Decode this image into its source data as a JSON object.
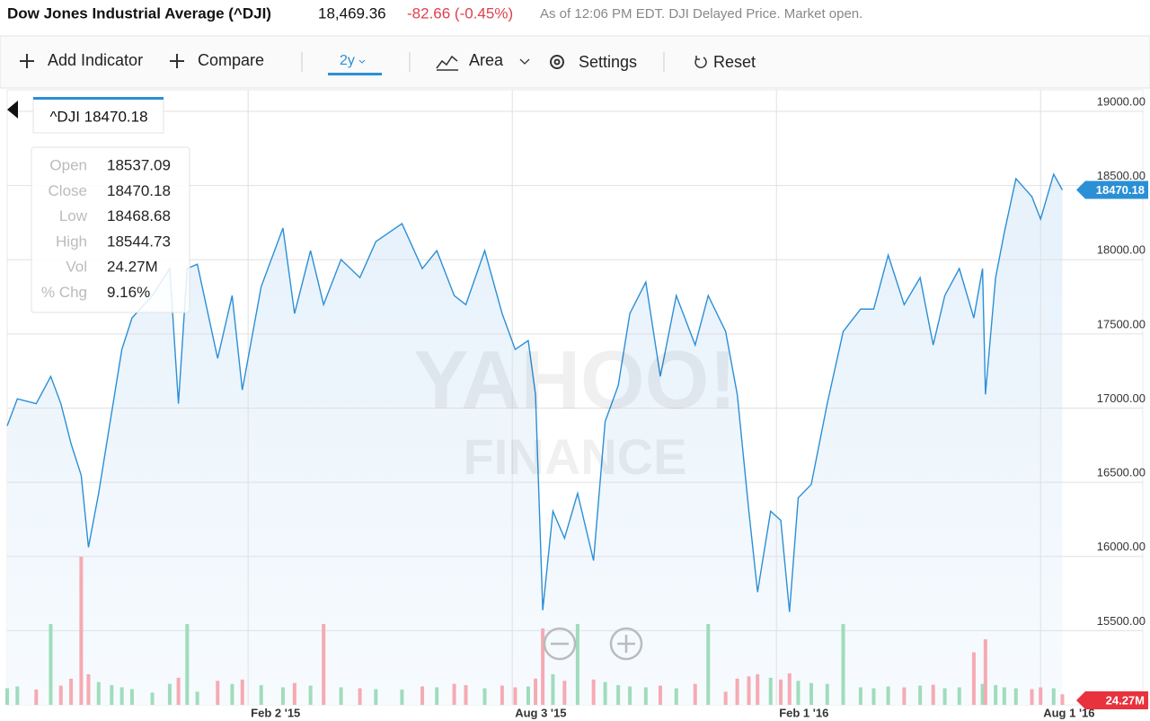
{
  "header": {
    "title": "Dow Jones Industrial Average (^DJI)",
    "price": "18,469.36",
    "change": "-82.66 (-0.45%)",
    "note": "As of 12:06 PM EDT. DJI Delayed Price. Market open."
  },
  "toolbar": [
    "Add Indicator",
    "Compare",
    "2y",
    "Area",
    "Settings",
    "Reset"
  ],
  "watermark": [
    "YAHOO!",
    "FINANCE"
  ],
  "legend_label": "^DJI 18470.18",
  "tooltip": {
    "rows": [
      [
        "Open",
        "18537.09"
      ],
      [
        "Close",
        "18470.18"
      ],
      [
        "Low",
        "18468.68"
      ],
      [
        "High",
        "18544.73"
      ],
      [
        "Vol",
        "24.27M"
      ],
      [
        "% Chg",
        "9.16%"
      ]
    ]
  },
  "chart_data": {
    "type": "area",
    "x": [
      "2014-08-20",
      "2014-08-27",
      "2014-09-09",
      "2014-09-19",
      "2014-09-26",
      "2014-10-03",
      "2014-10-10",
      "2014-10-15",
      "2014-10-22",
      "2014-10-31",
      "2014-11-07",
      "2014-11-14",
      "2014-11-28",
      "2014-12-10",
      "2014-12-16",
      "2014-12-22",
      "2014-12-29",
      "2015-01-12",
      "2015-01-22",
      "2015-01-29",
      "2015-02-11",
      "2015-02-26",
      "2015-03-06",
      "2015-03-17",
      "2015-03-26",
      "2015-04-07",
      "2015-04-20",
      "2015-05-01",
      "2015-05-19",
      "2015-06-02",
      "2015-06-12",
      "2015-06-24",
      "2015-07-02",
      "2015-07-15",
      "2015-07-27",
      "2015-08-05",
      "2015-08-14",
      "2015-08-19",
      "2015-08-24",
      "2015-08-31",
      "2015-09-08",
      "2015-09-17",
      "2015-09-28",
      "2015-10-06",
      "2015-10-15",
      "2015-10-23",
      "2015-11-03",
      "2015-11-13",
      "2015-11-24",
      "2015-12-07",
      "2015-12-16",
      "2015-12-28",
      "2016-01-05",
      "2016-01-13",
      "2016-01-19",
      "2016-01-28",
      "2016-02-04",
      "2016-02-10",
      "2016-02-16",
      "2016-02-25",
      "2016-03-07",
      "2016-03-18",
      "2016-03-30",
      "2016-04-08",
      "2016-04-18",
      "2016-04-29",
      "2016-05-10",
      "2016-05-19",
      "2016-05-27",
      "2016-06-06",
      "2016-06-16",
      "2016-06-22",
      "2016-06-24",
      "2016-07-01",
      "2016-07-07",
      "2016-07-15",
      "2016-07-26",
      "2016-08-01",
      "2016-08-10",
      "2016-08-16"
    ],
    "series": [
      {
        "color": "#2b8fd6",
        "values": [
          16880,
          17062,
          17030,
          17213,
          17030,
          16760,
          16547,
          16062,
          16425,
          16971,
          17395,
          17607,
          17758,
          17940,
          17030,
          17940,
          17970,
          17335,
          17758,
          17122,
          17818,
          18213,
          17637,
          18061,
          17697,
          18001,
          17879,
          18122,
          18243,
          17940,
          18061,
          17758,
          17697,
          18061,
          17637,
          17395,
          17455,
          17092,
          15638,
          16305,
          16123,
          16425,
          15972,
          16910,
          17152,
          17637,
          17849,
          17213,
          17758,
          17425,
          17758,
          17516,
          17092,
          16305,
          15760,
          16305,
          16244,
          15626,
          16395,
          16486,
          17030,
          17516,
          17667,
          17667,
          18031,
          17697,
          17879,
          17425,
          17758,
          17940,
          17607,
          17940,
          17092,
          17879,
          18183,
          18546,
          18425,
          18273,
          18576,
          18470.18
        ]
      }
    ],
    "volume": {
      "up_color": "#9fdcbc",
      "down_color": "#f6aab3",
      "lim": [
        0,
        380
      ],
      "values": [
        38,
        42,
        35,
        185,
        44,
        60,
        339,
        70,
        52,
        45,
        40,
        36,
        28,
        48,
        62,
        185,
        30,
        55,
        48,
        58,
        45,
        40,
        50,
        44,
        185,
        40,
        38,
        36,
        35,
        42,
        40,
        48,
        45,
        38,
        44,
        40,
        42,
        60,
        175,
        70,
        55,
        185,
        58,
        52,
        45,
        42,
        40,
        44,
        38,
        48,
        185,
        30,
        60,
        65,
        70,
        62,
        58,
        72,
        55,
        50,
        48,
        185,
        40,
        38,
        42,
        40,
        44,
        46,
        38,
        40,
        120,
        48,
        150,
        45,
        40,
        38,
        36,
        40,
        38,
        24.27
      ]
    },
    "xlim": [
      "2014-08-20",
      "2016-08-25"
    ],
    "xticks": [
      {
        "value": "2015-02-02",
        "label": "Feb 2 '15"
      },
      {
        "value": "2015-08-03",
        "label": "Aug 3 '15"
      },
      {
        "value": "2016-02-01",
        "label": "Feb 1 '16"
      },
      {
        "value": "2016-08-01",
        "label": "Aug 1 '16"
      }
    ],
    "ylim": [
      15000,
      19145
    ],
    "yticks": [
      {
        "value": 15500,
        "label": "15500.00"
      },
      {
        "value": 16000,
        "label": "16000.00"
      },
      {
        "value": 16500,
        "label": "16500.00"
      },
      {
        "value": 17000,
        "label": "17000.00"
      },
      {
        "value": 17500,
        "label": "17500.00"
      },
      {
        "value": 18000,
        "label": "18000.00"
      },
      {
        "value": 18500,
        "label": "18500.00"
      },
      {
        "value": 19000,
        "label": "19000.00"
      }
    ],
    "grid": true
  }
}
